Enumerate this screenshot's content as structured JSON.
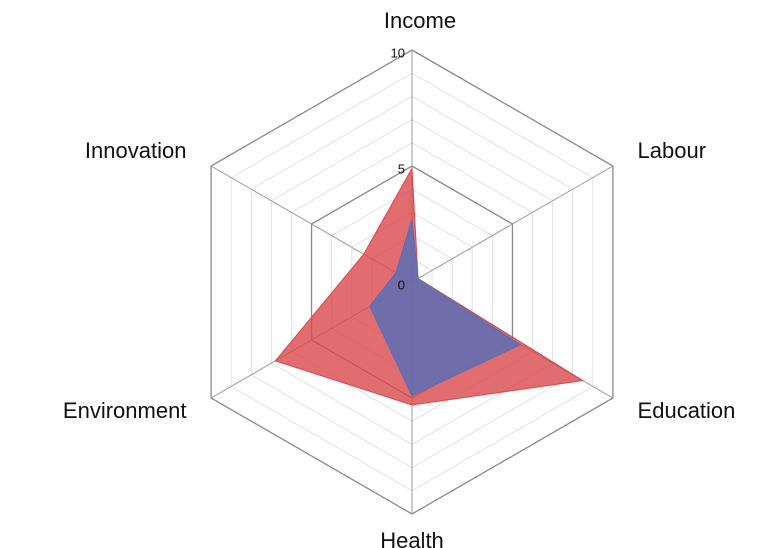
{
  "chart_data": {
    "type": "radar",
    "categories": [
      "Income",
      "Labour",
      "Education",
      "Health",
      "Environment",
      "Innovation"
    ],
    "series": [
      {
        "color": "#d9484c",
        "values": [
          4.9,
          0.3,
          8.5,
          5.3,
          6.8,
          2.4
        ]
      },
      {
        "color": "#5a6eb4",
        "values": [
          2.7,
          0.3,
          5.4,
          4.9,
          2.1,
          0.8
        ]
      }
    ],
    "ylim": [
      0,
      10
    ],
    "yticks": [
      0,
      5,
      10
    ],
    "grid": true
  }
}
